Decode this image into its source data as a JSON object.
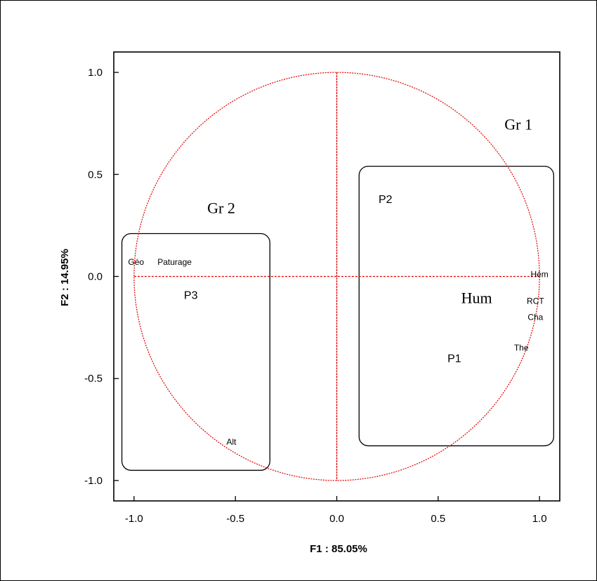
{
  "chart_data": {
    "type": "scatter",
    "xlabel": "F1  : 85.05%",
    "ylabel": "F2  : 14.95%",
    "xlim": [
      -1.1,
      1.1
    ],
    "ylim": [
      -1.1,
      1.1
    ],
    "x_ticks": [
      "-1.0",
      "-0.5",
      "0.0",
      "0.5",
      "1.0"
    ],
    "x_tick_values": [
      -1.0,
      -0.5,
      0.0,
      0.5,
      1.0
    ],
    "y_ticks": [
      "1.0",
      "0.5",
      "0.0",
      "-0.5",
      "-1.0"
    ],
    "y_tick_values": [
      1.0,
      0.5,
      0.0,
      -0.5,
      -1.0
    ],
    "grid": false,
    "correlation_circle": {
      "radius": 1.0,
      "color": "#e00000"
    },
    "variables": [
      {
        "label": "Géo",
        "x": -0.99,
        "y": 0.07
      },
      {
        "label": "Paturage",
        "x": -0.8,
        "y": 0.07
      },
      {
        "label": "Alt",
        "x": -0.52,
        "y": -0.81
      },
      {
        "label": "Hém",
        "x": 1.0,
        "y": 0.01
      },
      {
        "label": "RCT",
        "x": 0.98,
        "y": -0.12
      },
      {
        "label": "Cha",
        "x": 0.98,
        "y": -0.2
      },
      {
        "label": "The",
        "x": 0.91,
        "y": -0.35
      }
    ],
    "points": [
      {
        "label": "P1",
        "x": 0.58,
        "y": -0.4
      },
      {
        "label": "P2",
        "x": 0.24,
        "y": 0.38
      },
      {
        "label": "P3",
        "x": -0.72,
        "y": -0.09
      },
      {
        "label": "Hum",
        "x": 0.69,
        "y": -0.11
      }
    ],
    "groups": [
      {
        "label": "Gr 1",
        "x_range": [
          0.11,
          1.07
        ],
        "y_range": [
          -0.83,
          0.54
        ]
      },
      {
        "label": "Gr 2",
        "x_range": [
          -1.06,
          -0.33
        ],
        "y_range": [
          -0.95,
          0.21
        ]
      }
    ],
    "colors": {
      "circle": "#e00000",
      "axes": "#e00000",
      "frame": "#000000"
    }
  }
}
